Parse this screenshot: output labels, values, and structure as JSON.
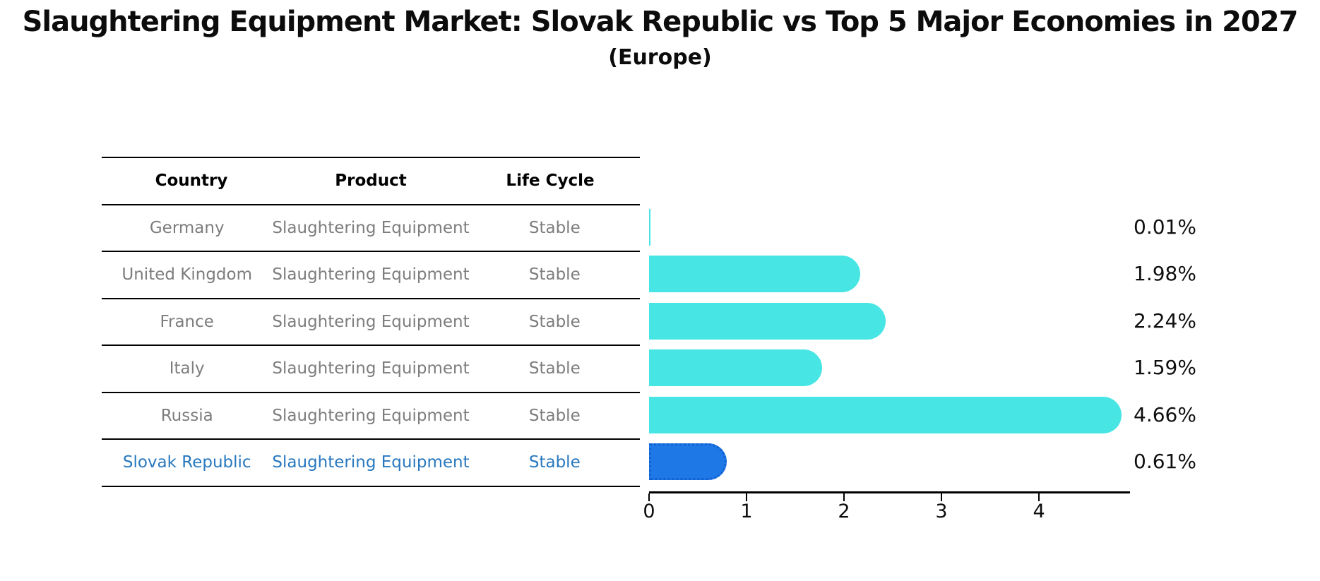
{
  "title": "Slaughtering Equipment Market: Slovak Republic vs Top 5 Major Economies in 2027",
  "subtitle": "(Europe)",
  "table": {
    "headers": [
      "Country",
      "Product",
      "Life Cycle"
    ],
    "rows": [
      {
        "country": "Germany",
        "product": "Slaughtering Equipment",
        "life_cycle": "Stable",
        "highlighted": false
      },
      {
        "country": "United Kingdom",
        "product": "Slaughtering Equipment",
        "life_cycle": "Stable",
        "highlighted": false
      },
      {
        "country": "France",
        "product": "Slaughtering Equipment",
        "life_cycle": "Stable",
        "highlighted": false
      },
      {
        "country": "Italy",
        "product": "Slaughtering Equipment",
        "life_cycle": "Stable",
        "highlighted": false
      },
      {
        "country": "Russia",
        "product": "Slaughtering Equipment",
        "life_cycle": "Stable",
        "highlighted": false
      },
      {
        "country": "Slovak Republic",
        "product": "Slaughtering Equipment",
        "life_cycle": "Stable",
        "highlighted": true
      }
    ]
  },
  "chart_data": {
    "type": "bar",
    "orientation": "horizontal",
    "title": "Slaughtering Equipment Market: Slovak Republic vs Top 5 Major Economies in 2027 (Europe)",
    "categories": [
      "Germany",
      "United Kingdom",
      "France",
      "Italy",
      "Russia",
      "Slovak Republic"
    ],
    "values": [
      0.01,
      1.98,
      2.24,
      1.59,
      4.66,
      0.61
    ],
    "value_labels": [
      "0.01%",
      "1.98%",
      "2.24%",
      "1.59%",
      "4.66%",
      "0.61%"
    ],
    "x_ticks": [
      "0",
      "1",
      "2",
      "3",
      "4"
    ],
    "xlim": [
      0,
      4.92
    ],
    "grid": false,
    "legend": false,
    "highlight_index": 5,
    "bar_color": "#48e5e5",
    "highlight_bar_color": "#1e78e6",
    "highlight_bar_border": "#1261d4"
  },
  "colors": {
    "row_text": "#7d7d7d",
    "highlight_text": "#2878bf",
    "heading_text": "#000000",
    "axis": "#000000",
    "value_label": "#0f0f0f"
  }
}
